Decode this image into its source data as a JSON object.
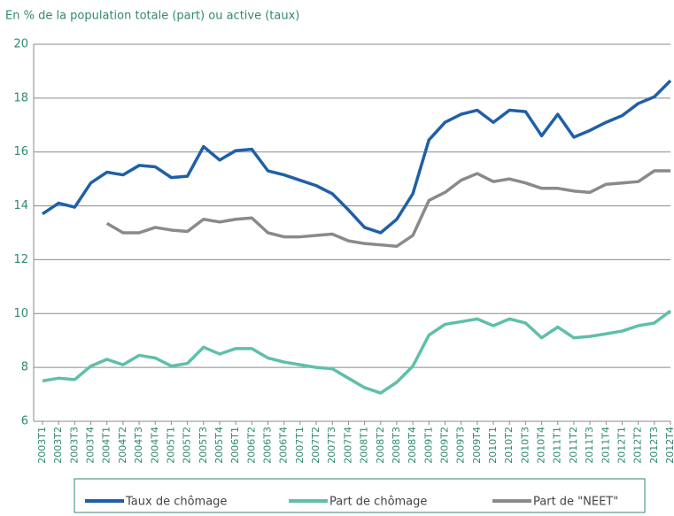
{
  "chart_data": {
    "type": "line",
    "title": "En % de la population totale (part) ou active (taux)",
    "categories": [
      "2003T1",
      "2003T2",
      "2003T3",
      "2003T4",
      "2004T1",
      "2004T2",
      "2004T3",
      "2004T4",
      "2005T1",
      "2005T2",
      "2005T3",
      "2005T4",
      "2006T1",
      "2006T2",
      "2006T3",
      "2006T4",
      "2007T1",
      "2007T2",
      "2007T3",
      "2007T4",
      "2008T1",
      "2008T2",
      "2008T3",
      "2008T4",
      "2009T1",
      "2009T2",
      "2009T3",
      "2009T4",
      "2010T1",
      "2010T2",
      "2010T3",
      "2010T4",
      "2011T1",
      "2011T2",
      "2011T3",
      "2011T4",
      "2012T1",
      "2012T2",
      "2012T3",
      "2012T4"
    ],
    "series": [
      {
        "name": "Taux de chômage",
        "color": "#1f5fa8",
        "values": [
          13.7,
          14.1,
          13.95,
          14.85,
          15.25,
          15.15,
          15.5,
          15.45,
          15.05,
          15.1,
          16.2,
          15.7,
          16.05,
          16.1,
          15.3,
          15.15,
          14.95,
          14.75,
          14.45,
          13.85,
          13.2,
          13.0,
          13.5,
          14.45,
          16.45,
          17.1,
          17.4,
          17.55,
          17.1,
          17.55,
          17.5,
          16.6,
          17.4,
          16.55,
          16.8,
          17.1,
          17.35,
          17.8,
          18.05,
          18.65
        ]
      },
      {
        "name": "Part de chômage",
        "color": "#5fbfaa",
        "values": [
          7.5,
          7.6,
          7.55,
          8.05,
          8.3,
          8.1,
          8.45,
          8.35,
          8.05,
          8.15,
          8.75,
          8.5,
          8.7,
          8.7,
          8.35,
          8.2,
          8.1,
          8.0,
          7.95,
          7.6,
          7.25,
          7.05,
          7.45,
          8.05,
          9.2,
          9.6,
          9.7,
          9.8,
          9.55,
          9.8,
          9.65,
          9.1,
          9.5,
          9.1,
          9.15,
          9.25,
          9.35,
          9.55,
          9.65,
          10.1
        ]
      },
      {
        "name": "Part de \"NEET\"",
        "color": "#8a8a8a",
        "values": [
          null,
          null,
          null,
          null,
          13.35,
          13.0,
          13.0,
          13.2,
          13.1,
          13.05,
          13.5,
          13.4,
          13.5,
          13.55,
          13.0,
          12.85,
          12.85,
          12.9,
          12.95,
          12.7,
          12.6,
          12.55,
          12.5,
          12.9,
          14.2,
          14.5,
          14.95,
          15.2,
          14.9,
          15.0,
          14.85,
          14.65,
          14.65,
          14.55,
          14.5,
          14.8,
          14.85,
          14.9,
          15.3,
          15.3
        ]
      }
    ],
    "ylim": [
      6,
      20
    ],
    "yticks": [
      6,
      8,
      10,
      12,
      14,
      16,
      18,
      20
    ],
    "grid": true
  }
}
